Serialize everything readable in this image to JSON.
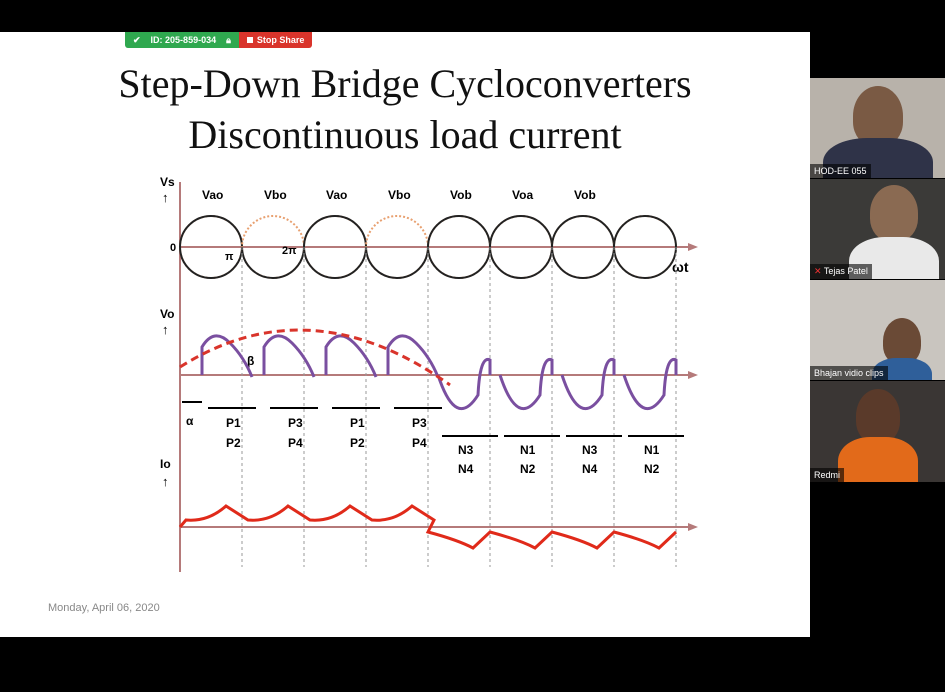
{
  "share_bar": {
    "meeting_id": "ID: 205-859-034",
    "stop_share_label": "Stop Share"
  },
  "slide": {
    "title_line1": "Step-Down Bridge Cycloconverters",
    "title_line2": "Discontinuous load current",
    "date": "Monday, April 06, 2020",
    "diagram": {
      "vs_label": "Vs",
      "vo_label": "Vo",
      "io_label": "Io",
      "wt_label": "ωt",
      "zero_label": "0",
      "pi_label": "π",
      "two_pi_label": "2π",
      "alpha_label": "α",
      "beta_label": "β",
      "source_labels": [
        "Vao",
        "Vbo",
        "Vao",
        "Vbo",
        "Vob",
        "Voa",
        "Vob"
      ],
      "positive_groups": [
        {
          "top": "P1",
          "bottom": "P2"
        },
        {
          "top": "P3",
          "bottom": "P4"
        },
        {
          "top": "P1",
          "bottom": "P2"
        },
        {
          "top": "P3",
          "bottom": "P4"
        }
      ],
      "negative_groups": [
        {
          "top": "N3",
          "bottom": "N4"
        },
        {
          "top": "N1",
          "bottom": "N2"
        },
        {
          "top": "N3",
          "bottom": "N4"
        },
        {
          "top": "N1",
          "bottom": "N2"
        }
      ],
      "colors": {
        "vs_main": "#222222",
        "vs_dashed": "#e8a070",
        "vo_curve": "#7a4fa0",
        "fundamental": "#d9342b",
        "io_curve": "#e02a1a",
        "axis": "#b57a7a"
      }
    }
  },
  "participants": [
    {
      "name": "HOD-EE 055"
    },
    {
      "name": "Tejas Patel"
    },
    {
      "name": "Bhajan vidio clips"
    },
    {
      "name": "Redmi"
    }
  ]
}
